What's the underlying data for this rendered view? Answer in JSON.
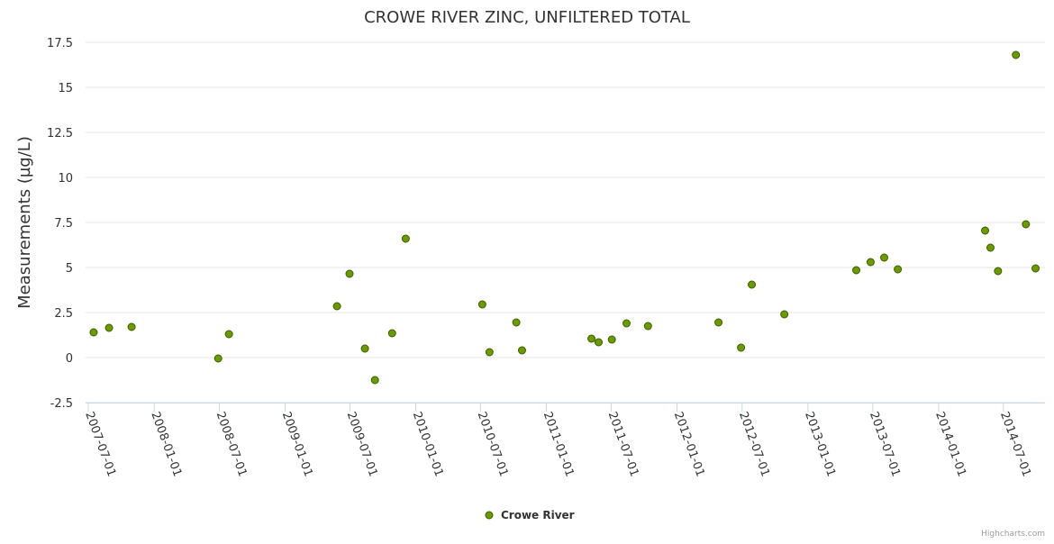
{
  "chart_data": {
    "type": "scatter",
    "title": "CROWE RIVER ZINC, UNFILTERED TOTAL",
    "xlabel": "",
    "ylabel": "Measurements (µg/L)",
    "ylim": [
      -2.5,
      17.5
    ],
    "xlim": [
      "2007-06-20",
      "2014-10-10"
    ],
    "y_ticks": [
      "-2.5",
      "0",
      "2.5",
      "5",
      "7.5",
      "10",
      "12.5",
      "15",
      "17.5"
    ],
    "x_ticks": [
      "2007-07-01",
      "2008-01-01",
      "2008-07-01",
      "2009-01-01",
      "2009-07-01",
      "2010-01-01",
      "2010-07-01",
      "2011-01-01",
      "2011-07-01",
      "2012-01-01",
      "2012-07-01",
      "2013-01-01",
      "2013-07-01",
      "2014-01-01",
      "2014-07-01"
    ],
    "grid": true,
    "legend_position": "bottom-center",
    "series": [
      {
        "name": "Crowe River",
        "color": "#6a9a00",
        "points": [
          [
            "2007-07-16",
            1.4
          ],
          [
            "2007-08-28",
            1.65
          ],
          [
            "2007-10-30",
            1.7
          ],
          [
            "2008-06-28",
            -0.05
          ],
          [
            "2008-07-28",
            1.3
          ],
          [
            "2009-05-26",
            2.85
          ],
          [
            "2009-06-30",
            4.65
          ],
          [
            "2009-08-12",
            0.5
          ],
          [
            "2009-09-09",
            -1.25
          ],
          [
            "2009-10-27",
            1.35
          ],
          [
            "2009-12-04",
            6.6
          ],
          [
            "2010-07-06",
            2.95
          ],
          [
            "2010-07-26",
            0.3
          ],
          [
            "2010-10-09",
            1.95
          ],
          [
            "2010-10-25",
            0.4
          ],
          [
            "2011-05-07",
            1.05
          ],
          [
            "2011-05-27",
            0.85
          ],
          [
            "2011-07-03",
            1.0
          ],
          [
            "2011-08-13",
            1.9
          ],
          [
            "2011-10-12",
            1.75
          ],
          [
            "2012-04-26",
            1.95
          ],
          [
            "2012-06-28",
            0.55
          ],
          [
            "2012-07-28",
            4.05
          ],
          [
            "2012-10-27",
            2.4
          ],
          [
            "2013-05-16",
            4.85
          ],
          [
            "2013-06-25",
            5.3
          ],
          [
            "2013-08-02",
            5.55
          ],
          [
            "2013-09-09",
            4.9
          ],
          [
            "2014-05-11",
            7.05
          ],
          [
            "2014-05-26",
            6.1
          ],
          [
            "2014-06-16",
            4.8
          ],
          [
            "2014-08-05",
            16.8
          ],
          [
            "2014-09-02",
            7.4
          ],
          [
            "2014-09-29",
            4.95
          ]
        ]
      }
    ],
    "credits": "Highcharts.com"
  }
}
